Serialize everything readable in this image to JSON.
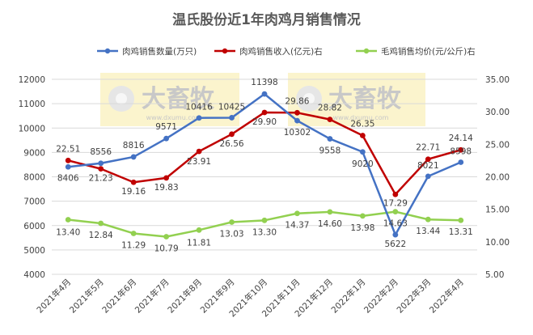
{
  "chart_data": {
    "type": "line",
    "title": "温氏股份近1年肉鸡月销售情况",
    "categories": [
      "2021年4月",
      "2021年5月",
      "2021年6月",
      "2021年7月",
      "2021年8月",
      "2021年9月",
      "2021年10月",
      "2021年11月",
      "2021年12月",
      "2022年1月",
      "2022年2月",
      "2022年3月",
      "2022年4月"
    ],
    "left_axis": {
      "min": 4000,
      "max": 12000,
      "ticks": [
        "4000",
        "5000",
        "6000",
        "7000",
        "8000",
        "9000",
        "10000",
        "11000",
        "12000"
      ]
    },
    "right_axis": {
      "min": 5,
      "max": 35,
      "ticks": [
        "5.00",
        "10.00",
        "15.00",
        "20.00",
        "25.00",
        "30.00",
        "35.00"
      ]
    },
    "grid": true,
    "legend_position": "top",
    "series": [
      {
        "name": "肉鸡销售数量(万只)",
        "axis": "left",
        "color": "#4472c4",
        "values": [
          8406,
          8556,
          8816,
          9571,
          10416,
          10425,
          11398,
          10302,
          9558,
          9020,
          5622,
          8021,
          8598
        ],
        "labels": [
          "8406",
          "8556",
          "8816",
          "9571",
          "10416",
          "10425",
          "11398",
          "10302",
          "9558",
          "9020",
          "5622",
          "8021",
          "8598"
        ]
      },
      {
        "name": "肉鸡销售收入(亿元)右",
        "axis": "right",
        "color": "#c00000",
        "values": [
          22.51,
          21.23,
          19.16,
          19.83,
          23.91,
          26.56,
          29.9,
          29.86,
          28.82,
          26.35,
          17.29,
          22.71,
          24.14
        ],
        "labels": [
          "22.51",
          "21.23",
          "19.16",
          "19.83",
          "23.91",
          "26.56",
          "29.90",
          "29.86",
          "28.82",
          "26.35",
          "17.29",
          "22.71",
          "24.14"
        ]
      },
      {
        "name": "毛鸡销售均价(元/公斤)右",
        "axis": "right",
        "color": "#92d050",
        "values": [
          13.4,
          12.84,
          11.29,
          10.79,
          11.81,
          13.03,
          13.3,
          14.37,
          14.6,
          13.98,
          14.63,
          13.44,
          13.31
        ],
        "labels": [
          "13.40",
          "12.84",
          "11.29",
          "10.79",
          "11.81",
          "13.03",
          "13.30",
          "14.37",
          "14.60",
          "13.98",
          "14.63",
          "13.44",
          "13.31"
        ]
      }
    ]
  },
  "watermark": {
    "brand": "大畜牧",
    "url": "www.dxumu.com"
  }
}
